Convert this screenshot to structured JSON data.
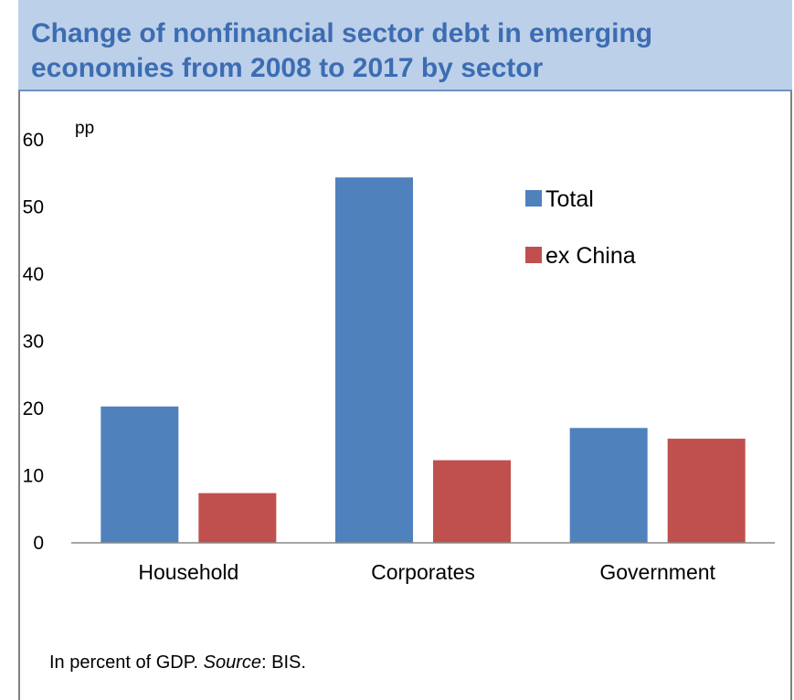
{
  "title": "Change of  nonfinancial sector debt in emerging economies from 2008 to 2017 by sector",
  "unit_label": "pp",
  "note": {
    "prefix": "In percent of GDP. ",
    "source_label": "Source",
    "suffix": ": BIS."
  },
  "colors": {
    "header_bg": "#bdd0e9",
    "title": "#3c6db3",
    "total": "#4f81bd",
    "ex_china": "#c0504d"
  },
  "chart_data": {
    "type": "bar",
    "categories": [
      "Household",
      "Corporates",
      "Government"
    ],
    "series": [
      {
        "name": "Total",
        "values": [
          20.3,
          54.4,
          17.1
        ],
        "color": "#4f81bd"
      },
      {
        "name": "ex China",
        "values": [
          7.4,
          12.3,
          15.5
        ],
        "color": "#c0504d"
      }
    ],
    "ylim": [
      0,
      60
    ],
    "yticks": [
      0,
      10,
      20,
      30,
      40,
      50,
      60
    ],
    "xlabel": "",
    "ylabel": "pp",
    "legend_position": "top-right",
    "grid": false
  }
}
